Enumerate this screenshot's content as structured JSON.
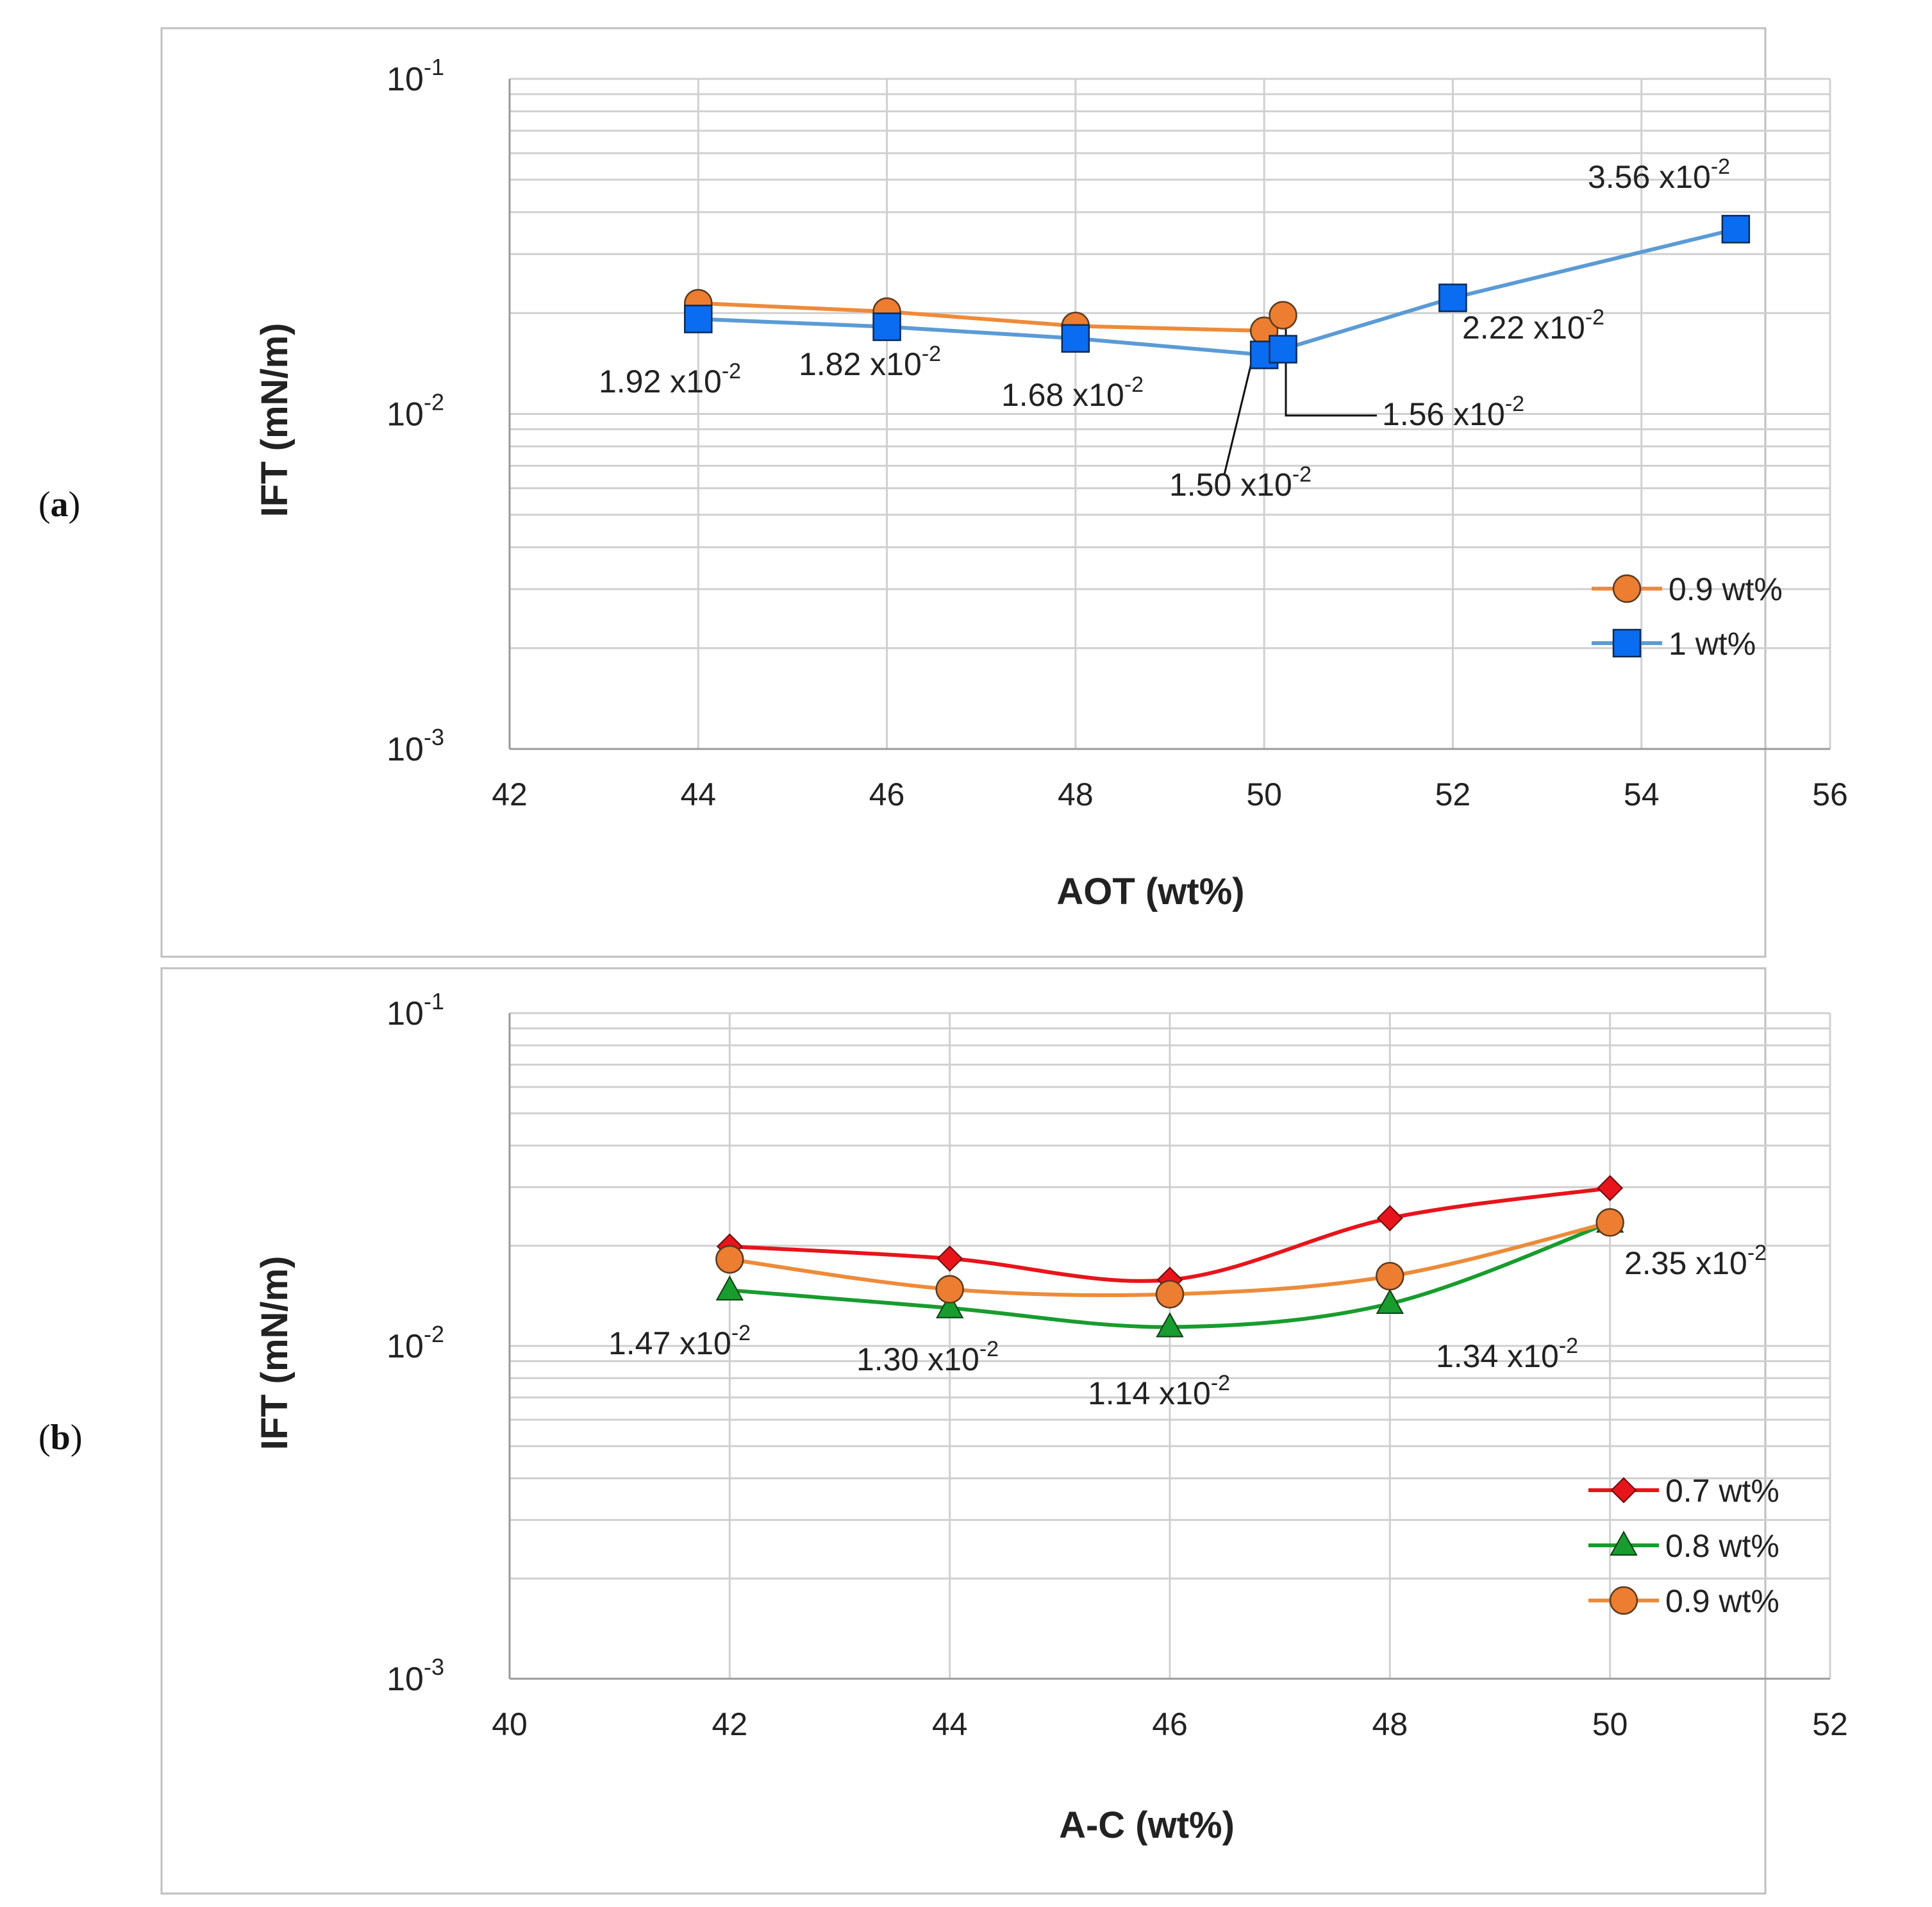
{
  "panel_labels": {
    "a": {
      "open": "(",
      "letter": "a",
      "close": ")"
    },
    "b": {
      "open": "(",
      "letter": "b",
      "close": ")"
    }
  },
  "tick_exponents": [
    "-1",
    "-2",
    "-3"
  ],
  "tick_base": "10",
  "colors": {
    "orange_line": "#ED8B3A",
    "orange_marker": "#ED7D31",
    "blue_line": "#5B9BD5",
    "blue_marker": "#0A6CF0",
    "red": "#E8141B",
    "green": "#189C2E",
    "grid": "#D0D0D0",
    "frame": "#BFBFBF"
  },
  "chart_data": [
    {
      "type": "line",
      "title": "",
      "xlabel": "AOT (wt%)",
      "ylabel": "IFT (mN/m)",
      "yscale": "log",
      "xlim": [
        42,
        56
      ],
      "ylim": [
        0.001,
        0.1
      ],
      "x_ticks": [
        "42",
        "44",
        "46",
        "48",
        "50",
        "52",
        "54",
        "56"
      ],
      "y_tick_labels": [
        "10^-1",
        "10^-2",
        "10^-3"
      ],
      "legend_position": "right-middle",
      "series": [
        {
          "name": "0.9 wt%",
          "marker": "circle",
          "x": [
            44,
            46,
            48,
            50,
            50.2
          ],
          "y": [
            0.0214,
            0.0202,
            0.0183,
            0.0177,
            0.0197
          ]
        },
        {
          "name": "1 wt%",
          "marker": "square",
          "x": [
            44,
            46,
            48,
            50,
            50.2,
            52,
            55
          ],
          "y": [
            0.0192,
            0.0182,
            0.0168,
            0.015,
            0.0156,
            0.0222,
            0.0356
          ]
        }
      ],
      "annotations": [
        {
          "mantissa": "1.92",
          "sep": " x",
          "base": "10",
          "exp": "-2"
        },
        {
          "mantissa": "1.82",
          "sep": " x",
          "base": "10",
          "exp": "-2"
        },
        {
          "mantissa": "1.68",
          "sep": " x",
          "base": "10",
          "exp": "-2"
        },
        {
          "mantissa": "1.50",
          "sep": " x",
          "base": "10",
          "exp": "-2"
        },
        {
          "mantissa": "1.56",
          "sep": " x",
          "base": "10",
          "exp": "-2"
        },
        {
          "mantissa": "2.22",
          "sep": " x",
          "base": "10",
          "exp": "-2"
        },
        {
          "mantissa": "3.56",
          "sep": " x",
          "base": "10",
          "exp": "-2"
        }
      ]
    },
    {
      "type": "line",
      "title": "",
      "xlabel": "A-C (wt%)",
      "ylabel": "IFT (mN/m)",
      "yscale": "log",
      "xlim": [
        40,
        52
      ],
      "ylim": [
        0.001,
        0.1
      ],
      "x_ticks": [
        "40",
        "42",
        "44",
        "46",
        "48",
        "50",
        "52"
      ],
      "y_tick_labels": [
        "10^-1",
        "10^-2",
        "10^-3"
      ],
      "legend_position": "bottom-right",
      "series": [
        {
          "name": "0.7 wt%",
          "marker": "diamond",
          "x": [
            42,
            44,
            46,
            48,
            50
          ],
          "y": [
            0.0199,
            0.0183,
            0.0158,
            0.0242,
            0.0298
          ]
        },
        {
          "name": "0.8 wt%",
          "marker": "triangle",
          "x": [
            42,
            44,
            46,
            48,
            50
          ],
          "y": [
            0.0147,
            0.013,
            0.0114,
            0.0134,
            0.0235
          ]
        },
        {
          "name": "0.9 wt%",
          "marker": "circle",
          "x": [
            42,
            44,
            46,
            48,
            50
          ],
          "y": [
            0.0182,
            0.0148,
            0.0143,
            0.0162,
            0.0235
          ]
        }
      ],
      "annotations": [
        {
          "mantissa": "1.47",
          "sep": " x",
          "base": "10",
          "exp": "-2"
        },
        {
          "mantissa": "1.30",
          "sep": " x",
          "base": "10",
          "exp": "-2"
        },
        {
          "mantissa": "1.14",
          "sep": " x",
          "base": "10",
          "exp": "-2"
        },
        {
          "mantissa": "1.34",
          "sep": " x",
          "base": "10",
          "exp": "-2"
        },
        {
          "mantissa": "2.35",
          "sep": " x",
          "base": "10",
          "exp": "-2"
        }
      ]
    }
  ]
}
